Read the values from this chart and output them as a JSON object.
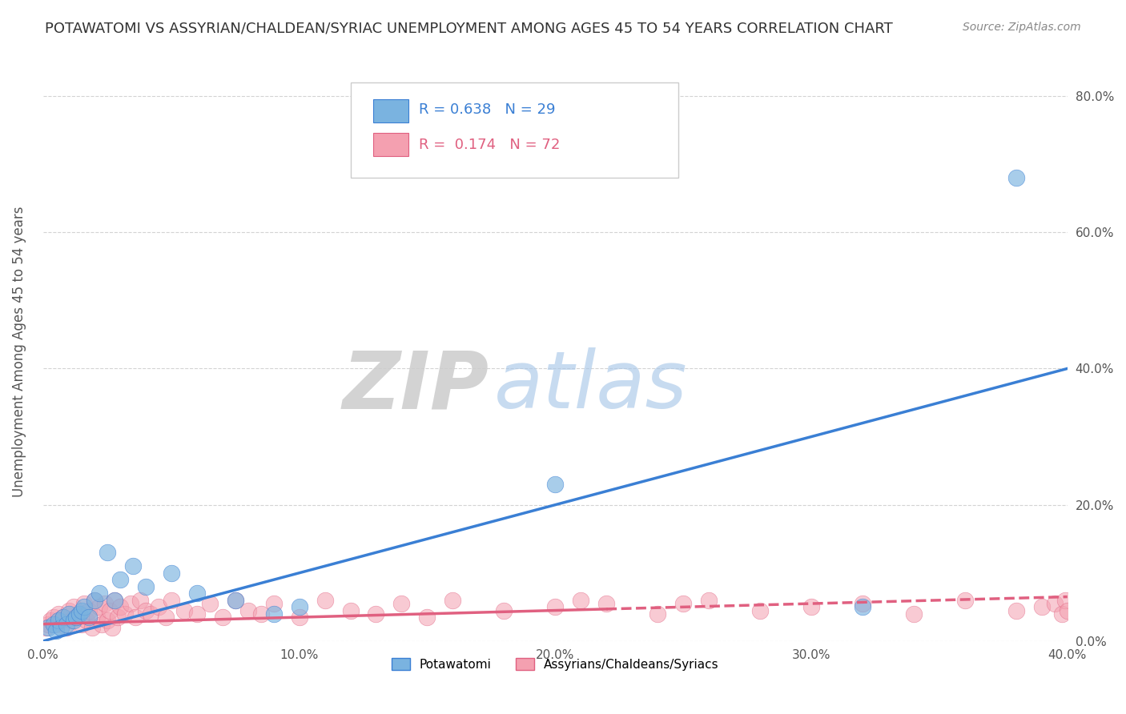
{
  "title": "POTAWATOMI VS ASSYRIAN/CHALDEAN/SYRIAC UNEMPLOYMENT AMONG AGES 45 TO 54 YEARS CORRELATION CHART",
  "source": "Source: ZipAtlas.com",
  "ylabel": "Unemployment Among Ages 45 to 54 years",
  "xlim": [
    0.0,
    0.4
  ],
  "ylim": [
    0.0,
    0.85
  ],
  "yticks": [
    0.0,
    0.2,
    0.4,
    0.6,
    0.8
  ],
  "xticks": [
    0.0,
    0.1,
    0.2,
    0.3,
    0.4
  ],
  "color_potawatomi": "#7ab3e0",
  "color_assyrian": "#f4a0b0",
  "trendline_potawatomi_color": "#3a7fd4",
  "trendline_assyrian_color": "#e06080",
  "background_color": "#ffffff",
  "potawatomi_x": [
    0.002,
    0.004,
    0.005,
    0.006,
    0.007,
    0.008,
    0.009,
    0.01,
    0.012,
    0.013,
    0.014,
    0.015,
    0.016,
    0.018,
    0.02,
    0.022,
    0.025,
    0.028,
    0.03,
    0.035,
    0.04,
    0.05,
    0.06,
    0.075,
    0.09,
    0.1,
    0.2,
    0.32,
    0.38
  ],
  "potawatomi_y": [
    0.02,
    0.025,
    0.015,
    0.03,
    0.02,
    0.035,
    0.025,
    0.04,
    0.03,
    0.035,
    0.04,
    0.045,
    0.05,
    0.035,
    0.06,
    0.07,
    0.13,
    0.06,
    0.09,
    0.11,
    0.08,
    0.1,
    0.07,
    0.06,
    0.04,
    0.05,
    0.23,
    0.05,
    0.68
  ],
  "assyrian_x": [
    0.001,
    0.002,
    0.003,
    0.004,
    0.005,
    0.006,
    0.007,
    0.008,
    0.009,
    0.01,
    0.011,
    0.012,
    0.013,
    0.014,
    0.015,
    0.016,
    0.017,
    0.018,
    0.019,
    0.02,
    0.021,
    0.022,
    0.023,
    0.024,
    0.025,
    0.026,
    0.027,
    0.028,
    0.029,
    0.03,
    0.032,
    0.034,
    0.036,
    0.038,
    0.04,
    0.042,
    0.045,
    0.048,
    0.05,
    0.055,
    0.06,
    0.065,
    0.07,
    0.075,
    0.08,
    0.085,
    0.09,
    0.1,
    0.11,
    0.12,
    0.13,
    0.14,
    0.15,
    0.16,
    0.18,
    0.2,
    0.22,
    0.24,
    0.26,
    0.28,
    0.3,
    0.32,
    0.34,
    0.36,
    0.38,
    0.39,
    0.395,
    0.398,
    0.399,
    0.4,
    0.21,
    0.25
  ],
  "assyrian_y": [
    0.02,
    0.025,
    0.03,
    0.035,
    0.025,
    0.04,
    0.03,
    0.035,
    0.02,
    0.045,
    0.03,
    0.05,
    0.035,
    0.04,
    0.025,
    0.055,
    0.03,
    0.045,
    0.02,
    0.06,
    0.035,
    0.05,
    0.025,
    0.055,
    0.03,
    0.045,
    0.02,
    0.06,
    0.035,
    0.05,
    0.04,
    0.055,
    0.035,
    0.06,
    0.045,
    0.04,
    0.05,
    0.035,
    0.06,
    0.045,
    0.04,
    0.055,
    0.035,
    0.06,
    0.045,
    0.04,
    0.055,
    0.035,
    0.06,
    0.045,
    0.04,
    0.055,
    0.035,
    0.06,
    0.045,
    0.05,
    0.055,
    0.04,
    0.06,
    0.045,
    0.05,
    0.055,
    0.04,
    0.06,
    0.045,
    0.05,
    0.055,
    0.04,
    0.06,
    0.045,
    0.06,
    0.055
  ],
  "trendline_pot_x0": 0.0,
  "trendline_pot_y0": 0.0,
  "trendline_pot_x1": 0.4,
  "trendline_pot_y1": 0.4,
  "trendline_assy_x0": 0.0,
  "trendline_assy_y0": 0.025,
  "trendline_assy_x1": 0.4,
  "trendline_assy_y1": 0.065,
  "trendline_assy_solid_end": 0.22,
  "legend_text_1": "R = 0.638   N = 29",
  "legend_text_2": "R =  0.174   N = 72",
  "legend_label_1": "Potawatomi",
  "legend_label_2": "Assyrians/Chaldeans/Syriacs"
}
